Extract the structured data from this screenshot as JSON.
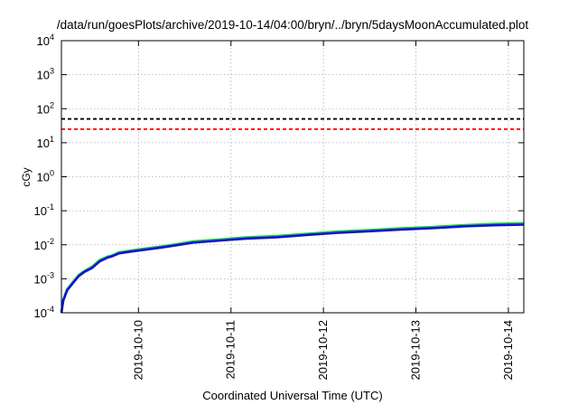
{
  "chart_data": {
    "type": "line",
    "title": "/data/run/goesPlots/archive/2019-10-14/04:00/bryn/../bryn/5daysMoonAccumulated.plot",
    "xlabel": "Coordinated Universal Time (UTC)",
    "ylabel": "cGy",
    "yscale": "log",
    "ylim": [
      0.0001,
      10000
    ],
    "xlim": [
      "2019-10-09T04:00",
      "2019-10-14T04:00"
    ],
    "grid": true,
    "x_ticks": [
      "2019-10-10",
      "2019-10-11",
      "2019-10-12",
      "2019-10-13",
      "2019-10-14"
    ],
    "y_ticks": [
      {
        "base": "10",
        "exp": "-4",
        "value": 0.0001
      },
      {
        "base": "10",
        "exp": "-3",
        "value": 0.001
      },
      {
        "base": "10",
        "exp": "-2",
        "value": 0.01
      },
      {
        "base": "10",
        "exp": "-1",
        "value": 0.1
      },
      {
        "base": "10",
        "exp": "0",
        "value": 1
      },
      {
        "base": "10",
        "exp": "1",
        "value": 10
      },
      {
        "base": "10",
        "exp": "2",
        "value": 100
      },
      {
        "base": "10",
        "exp": "3",
        "value": 1000
      },
      {
        "base": "10",
        "exp": "4",
        "value": 10000
      }
    ],
    "reference_lines": [
      {
        "value": 50,
        "color": "#000000",
        "style": "dashed"
      },
      {
        "value": 25,
        "color": "#ff0000",
        "style": "dashed"
      }
    ],
    "series": [
      {
        "color": "#22cc22",
        "x": [
          "2019-10-09T04:00",
          "2019-10-09T04:30",
          "2019-10-09T05:30",
          "2019-10-09T07:00",
          "2019-10-09T08:30",
          "2019-10-09T10:00",
          "2019-10-09T12:00",
          "2019-10-09T14:00",
          "2019-10-09T16:00",
          "2019-10-09T17:00",
          "2019-10-09T19:00",
          "2019-10-09T22:00",
          "2019-10-10T02:00",
          "2019-10-10T06:00",
          "2019-10-10T10:00",
          "2019-10-10T14:00",
          "2019-10-10T20:00",
          "2019-10-11T04:00",
          "2019-10-11T12:00",
          "2019-10-11T20:00",
          "2019-10-12T04:00",
          "2019-10-12T12:00",
          "2019-10-12T20:00",
          "2019-10-13T04:00",
          "2019-10-13T12:00",
          "2019-10-13T20:00",
          "2019-10-14T04:00"
        ],
        "values": [
          0.0001,
          0.00025,
          0.0005,
          0.0008,
          0.0013,
          0.0017,
          0.0023,
          0.0036,
          0.0045,
          0.0048,
          0.006,
          0.0068,
          0.0078,
          0.009,
          0.0105,
          0.0125,
          0.014,
          0.0165,
          0.018,
          0.021,
          0.0245,
          0.027,
          0.0305,
          0.033,
          0.0375,
          0.041,
          0.043
        ]
      },
      {
        "color": "#1010dd",
        "x": [
          "2019-10-09T04:00",
          "2019-10-09T04:30",
          "2019-10-09T05:30",
          "2019-10-09T07:00",
          "2019-10-09T08:30",
          "2019-10-09T10:00",
          "2019-10-09T12:00",
          "2019-10-09T14:00",
          "2019-10-09T16:00",
          "2019-10-09T17:00",
          "2019-10-09T19:00",
          "2019-10-09T22:00",
          "2019-10-10T02:00",
          "2019-10-10T06:00",
          "2019-10-10T10:00",
          "2019-10-10T14:00",
          "2019-10-10T20:00",
          "2019-10-11T04:00",
          "2019-10-11T12:00",
          "2019-10-11T20:00",
          "2019-10-12T04:00",
          "2019-10-12T12:00",
          "2019-10-12T20:00",
          "2019-10-13T04:00",
          "2019-10-13T12:00",
          "2019-10-13T20:00",
          "2019-10-14T04:00"
        ],
        "values": [
          0.0001,
          0.00023,
          0.00046,
          0.00075,
          0.0012,
          0.0016,
          0.0021,
          0.0033,
          0.0042,
          0.0045,
          0.0056,
          0.0063,
          0.0072,
          0.0083,
          0.0097,
          0.0115,
          0.013,
          0.0152,
          0.0167,
          0.0195,
          0.0225,
          0.025,
          0.028,
          0.0305,
          0.0345,
          0.0375,
          0.039
        ]
      }
    ]
  }
}
